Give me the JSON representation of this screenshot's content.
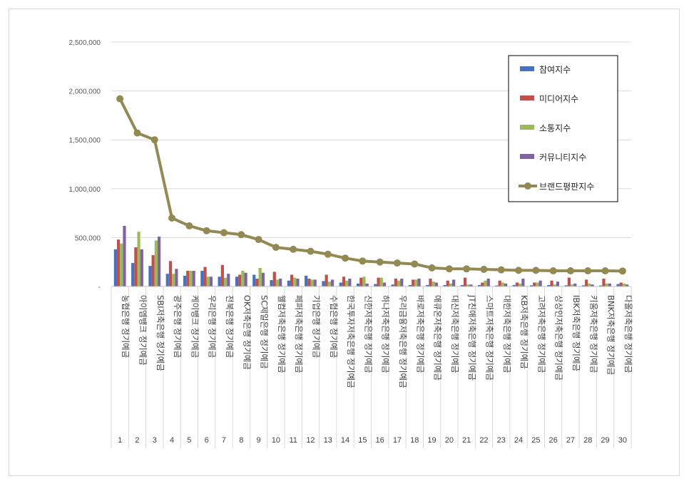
{
  "chart_data": {
    "type": "bar",
    "y_ticks": [
      "-",
      "500,000",
      "1,000,000",
      "1,500,000",
      "2,000,000",
      "2,500,000"
    ],
    "ylim": [
      0,
      2500000
    ],
    "grid": "horizontal",
    "legend_position": "top-right",
    "categories": [
      {
        "index": "1",
        "name": "농협은행",
        "product": "정기예금"
      },
      {
        "index": "2",
        "name": "아이엠뱅크",
        "product": "정기예금"
      },
      {
        "index": "3",
        "name": "SBI저축은행",
        "product": "정기예금"
      },
      {
        "index": "4",
        "name": "광주은행",
        "product": "정기예금"
      },
      {
        "index": "5",
        "name": "케이뱅크",
        "product": "정기예금"
      },
      {
        "index": "6",
        "name": "우리은행",
        "product": "정기예금"
      },
      {
        "index": "7",
        "name": "전북은행",
        "product": "정기예금"
      },
      {
        "index": "8",
        "name": "OK저축은행",
        "product": "정기예금"
      },
      {
        "index": "9",
        "name": "SC제일은행",
        "product": "정기예금"
      },
      {
        "index": "10",
        "name": "웰컴저축은행",
        "product": "정기예금"
      },
      {
        "index": "11",
        "name": "페퍼저축은행",
        "product": "정기예금"
      },
      {
        "index": "12",
        "name": "기업은행",
        "product": "정기예금"
      },
      {
        "index": "13",
        "name": "수협은행",
        "product": "정기예금"
      },
      {
        "index": "14",
        "name": "한국투자저축은행",
        "product": "정기예금"
      },
      {
        "index": "15",
        "name": "신한저축은행",
        "product": "정기예금"
      },
      {
        "index": "16",
        "name": "하나저축은행",
        "product": "정기예금"
      },
      {
        "index": "17",
        "name": "우리금융저축은행",
        "product": "정기예금"
      },
      {
        "index": "18",
        "name": "바로저축은행",
        "product": "정기예금"
      },
      {
        "index": "19",
        "name": "애큐온저축은행",
        "product": "정기예금"
      },
      {
        "index": "20",
        "name": "대신저축은행",
        "product": "정기예금"
      },
      {
        "index": "21",
        "name": "JT친애저축은행",
        "product": "정기예금"
      },
      {
        "index": "22",
        "name": "스마트저축은행",
        "product": "정기예금"
      },
      {
        "index": "23",
        "name": "대한저축은행",
        "product": "정기예금"
      },
      {
        "index": "24",
        "name": "KB저축은행",
        "product": "정기예금"
      },
      {
        "index": "25",
        "name": "고려저축은행",
        "product": "정기예금"
      },
      {
        "index": "26",
        "name": "상상인저축은행",
        "product": "정기예금"
      },
      {
        "index": "27",
        "name": "IBK저축은행",
        "product": "정기예금"
      },
      {
        "index": "28",
        "name": "키움저축은행",
        "product": "정기예금"
      },
      {
        "index": "29",
        "name": "BNK저축은행",
        "product": "정기예금"
      },
      {
        "index": "30",
        "name": "다올저축은행",
        "product": "정기예금"
      }
    ],
    "series": [
      {
        "name": "참여지수",
        "kind": "bar",
        "color": "#4472c4",
        "values": [
          380000,
          240000,
          210000,
          130000,
          110000,
          160000,
          100000,
          100000,
          120000,
          65000,
          60000,
          110000,
          55000,
          40000,
          30000,
          25000,
          20000,
          15000,
          15000,
          15000,
          15000,
          15000,
          10000,
          15000,
          12000,
          15000,
          12000,
          12000,
          10000,
          25000
        ]
      },
      {
        "name": "미디어지수",
        "kind": "bar",
        "color": "#c0504d",
        "values": [
          480000,
          400000,
          320000,
          260000,
          160000,
          200000,
          220000,
          120000,
          80000,
          150000,
          120000,
          80000,
          120000,
          100000,
          90000,
          90000,
          80000,
          70000,
          80000,
          60000,
          90000,
          40000,
          60000,
          40000,
          40000,
          60000,
          90000,
          70000,
          80000,
          40000
        ]
      },
      {
        "name": "소통지수",
        "kind": "bar",
        "color": "#9bbb59",
        "values": [
          440000,
          560000,
          470000,
          130000,
          160000,
          100000,
          90000,
          160000,
          190000,
          70000,
          90000,
          70000,
          50000,
          60000,
          100000,
          90000,
          60000,
          70000,
          50000,
          30000,
          20000,
          60000,
          40000,
          30000,
          40000,
          20000,
          20000,
          30000,
          30000,
          30000
        ]
      },
      {
        "name": "커뮤니티지수",
        "kind": "bar",
        "color": "#8064a2",
        "values": [
          620000,
          380000,
          510000,
          180000,
          160000,
          100000,
          130000,
          140000,
          140000,
          80000,
          80000,
          70000,
          70000,
          80000,
          30000,
          40000,
          80000,
          80000,
          40000,
          70000,
          20000,
          80000,
          30000,
          80000,
          60000,
          50000,
          30000,
          20000,
          30000,
          20000
        ]
      },
      {
        "name": "브랜드평판지수",
        "kind": "line",
        "color": "#938953",
        "values": [
          1920000,
          1570000,
          1500000,
          700000,
          620000,
          570000,
          550000,
          530000,
          480000,
          400000,
          380000,
          360000,
          330000,
          290000,
          260000,
          250000,
          240000,
          230000,
          190000,
          180000,
          180000,
          175000,
          170000,
          165000,
          165000,
          160000,
          160000,
          160000,
          160000,
          158000
        ]
      }
    ]
  }
}
